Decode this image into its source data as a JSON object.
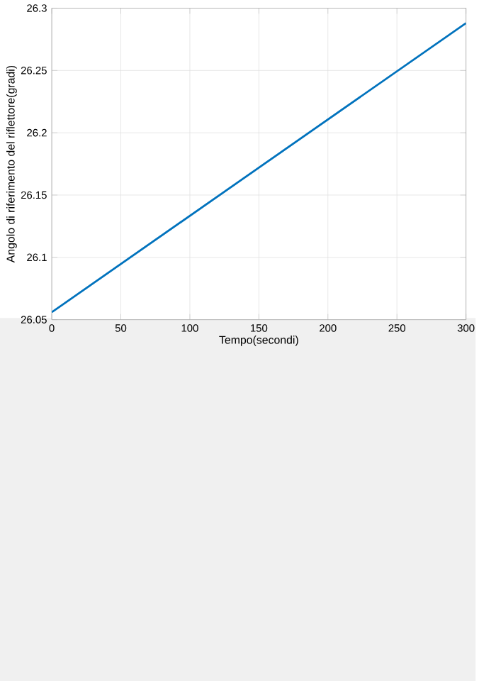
{
  "chart_data": {
    "type": "line",
    "xlabel": "Tempo(secondi)",
    "ylabel": "Angolo di riferimento del riflettore(gradi)",
    "x": [
      0,
      150,
      300
    ],
    "series": [
      {
        "color": "#0072bd",
        "values": [
          26.056,
          26.172,
          26.288
        ]
      }
    ],
    "xlim": [
      0,
      300
    ],
    "xticks": [
      0,
      50,
      100,
      150,
      200,
      250,
      300
    ],
    "ylim": [
      26.05,
      26.3
    ],
    "yticks": [
      {
        "value": 26.05,
        "label": "26.05"
      },
      {
        "value": 26.1,
        "label": "26.1"
      },
      {
        "value": 26.15,
        "label": "26.15"
      },
      {
        "value": 26.2,
        "label": "26.2"
      },
      {
        "value": 26.25,
        "label": "26.25"
      },
      {
        "value": 26.3,
        "label": "26.3"
      }
    ],
    "grid": true
  }
}
